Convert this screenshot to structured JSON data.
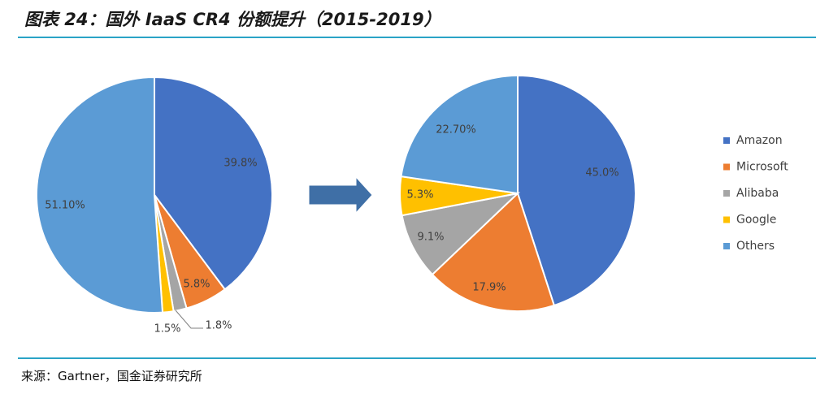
{
  "title": "图表 24：国外 IaaS CR4 份额提升（2015-2019）",
  "source": "来源：Gartner，国金证券研究所",
  "colors": {
    "Amazon": "#4472c4",
    "Microsoft": "#ed7d31",
    "Alibaba": "#a5a5a5",
    "Google": "#ffc000",
    "Others": "#5b9bd5",
    "rule": "#2aa3c6",
    "arrow": "#3f6fa6"
  },
  "chart_data": [
    {
      "type": "pie",
      "year": "2015",
      "categories": [
        "Amazon",
        "Microsoft",
        "Alibaba",
        "Google",
        "Others"
      ],
      "values": [
        39.8,
        5.8,
        1.8,
        1.5,
        51.1
      ],
      "labels": [
        "39.8%",
        "5.8%",
        "1.8%",
        "1.5%",
        "51.10%"
      ]
    },
    {
      "type": "pie",
      "year": "2019",
      "categories": [
        "Amazon",
        "Microsoft",
        "Alibaba",
        "Google",
        "Others"
      ],
      "values": [
        45.0,
        17.9,
        9.1,
        5.3,
        22.7
      ],
      "labels": [
        "45.0%",
        "17.9%",
        "9.1%",
        "5.3%",
        "22.70%"
      ]
    }
  ],
  "legend": [
    "Amazon",
    "Microsoft",
    "Alibaba",
    "Google",
    "Others"
  ]
}
